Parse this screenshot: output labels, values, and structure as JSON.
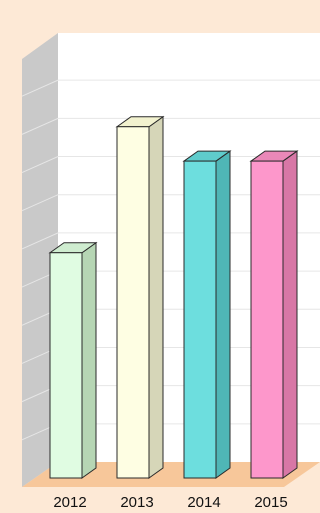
{
  "colors": {
    "background": "#fde9d6",
    "wall": "#ffffff",
    "side_wall": "#c9c9c9",
    "floor": "#f7c79a",
    "gridline": "#e6e6e6",
    "outline": "#2a2a2a"
  },
  "chart_data": {
    "type": "bar",
    "categories": [
      "2012",
      "2013",
      "2014",
      "2015"
    ],
    "values": [
      59,
      92,
      83,
      83
    ],
    "ylim": [
      0,
      110
    ],
    "grid": true,
    "title": "",
    "xlabel": "",
    "ylabel": "",
    "bar_colors": [
      {
        "front": "#e0fce2",
        "side": "#b6d6b4",
        "top": "#cfedd0"
      },
      {
        "front": "#fefee3",
        "side": "#d6d6b8",
        "top": "#f2f2cf"
      },
      {
        "front": "#6ddede",
        "side": "#4fb6b6",
        "top": "#5fcccc"
      },
      {
        "front": "#fd97cb",
        "side": "#d877a6",
        "top": "#ea88b8"
      }
    ]
  }
}
